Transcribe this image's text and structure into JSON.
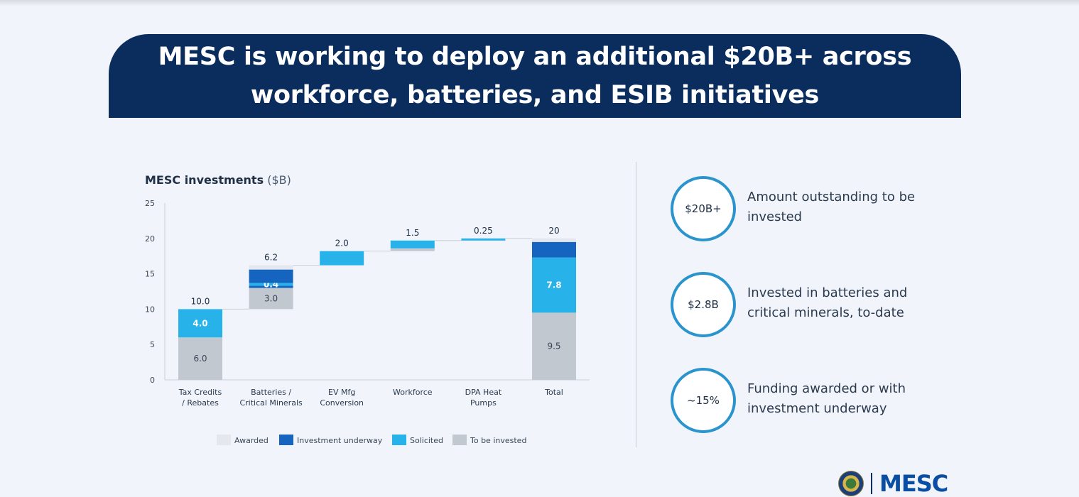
{
  "banner": {
    "line1": "MESC is working to deploy an additional $20B+ across",
    "line2": "workforce, batteries, and ESIB initiatives"
  },
  "chart_title": {
    "bold": "MESC investments",
    "unit": "($B)"
  },
  "colors": {
    "awarded": "#e4e8ee",
    "investment_underway": "#1565c0",
    "solicited": "#27b2ea",
    "to_be_invested": "#c2c8d0",
    "banner": "#0a2d5e",
    "circle_border": "#2b94cd"
  },
  "chart_data": {
    "type": "bar",
    "subtype": "waterfall-stacked",
    "title": "MESC investments ($B)",
    "xlabel": "",
    "ylabel": "",
    "ylim": [
      0,
      25
    ],
    "yticks": [
      0,
      5,
      10,
      15,
      20,
      25
    ],
    "grid": false,
    "legend_position": "bottom",
    "categories": [
      [
        "Tax Credits",
        "/ Rebates"
      ],
      [
        "Batteries /",
        "Critical Minerals"
      ],
      [
        "EV Mfg",
        "Conversion"
      ],
      [
        "Workforce"
      ],
      [
        "DPA Heat",
        "Pumps"
      ],
      [
        "Total"
      ]
    ],
    "totals": [
      "10.0",
      "6.2",
      "2.0",
      "1.5",
      "0.25",
      "20"
    ],
    "bars": [
      {
        "base": 0,
        "segments": [
          {
            "series": "to_be_invested",
            "value": 6.0,
            "label": "6.0"
          },
          {
            "series": "solicited",
            "value": 4.0,
            "label": "4.0"
          }
        ]
      },
      {
        "base": 10.0,
        "segments": [
          {
            "series": "to_be_invested",
            "value": 3.0,
            "label": "3.0"
          },
          {
            "series": "investment_underway",
            "value": 0.3,
            "label": ""
          },
          {
            "series": "solicited",
            "value": 0.4,
            "label": "0.4"
          },
          {
            "series": "investment_underway",
            "value": 1.9,
            "label": ""
          },
          {
            "series": "awarded",
            "value": 0.6,
            "label": ""
          }
        ]
      },
      {
        "base": 16.2,
        "segments": [
          {
            "series": "solicited",
            "value": 2.0,
            "label": ""
          }
        ]
      },
      {
        "base": 18.2,
        "segments": [
          {
            "series": "to_be_invested",
            "value": 0.4,
            "label": ""
          },
          {
            "series": "solicited",
            "value": 1.1,
            "label": ""
          }
        ]
      },
      {
        "base": 19.7,
        "segments": [
          {
            "series": "solicited",
            "value": 0.3,
            "label": ""
          }
        ]
      },
      {
        "base": 0,
        "segments": [
          {
            "series": "to_be_invested",
            "value": 9.5,
            "label": "9.5"
          },
          {
            "series": "solicited",
            "value": 7.8,
            "label": "7.8"
          },
          {
            "series": "investment_underway",
            "value": 2.2,
            "label": ""
          },
          {
            "series": "awarded",
            "value": 0.5,
            "label": ""
          }
        ]
      }
    ],
    "legend": [
      {
        "series": "awarded",
        "label": "Awarded"
      },
      {
        "series": "investment_underway",
        "label": "Investment underway"
      },
      {
        "series": "solicited",
        "label": "Solicited"
      },
      {
        "series": "to_be_invested",
        "label": "To be invested"
      }
    ]
  },
  "stats": [
    {
      "value": "$20B+",
      "line1": "Amount outstanding to be",
      "line2": "invested"
    },
    {
      "value": "$2.8B",
      "line1": "Invested in batteries and",
      "line2": "critical minerals, to-date"
    },
    {
      "value": "~15%",
      "line1": "Funding awarded or with",
      "line2": "investment underway"
    }
  ],
  "logo": {
    "wordmark": "MESC",
    "seal_text": "U.S. Department of Energy"
  }
}
